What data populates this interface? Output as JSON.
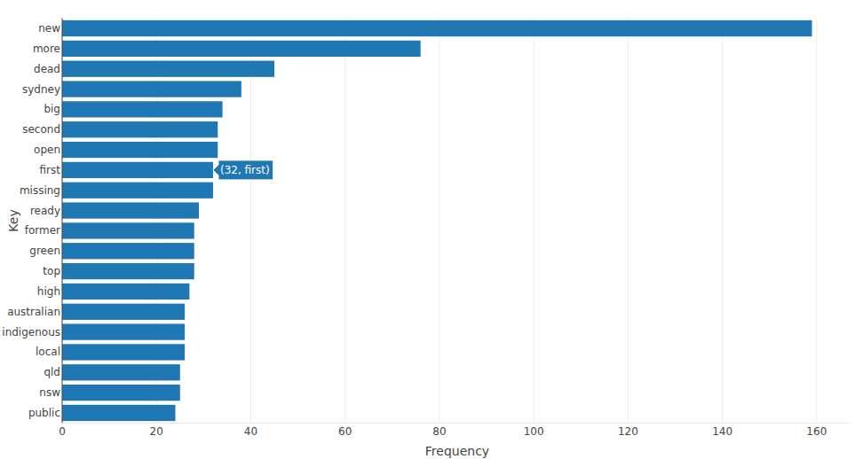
{
  "chart_data": {
    "type": "bar",
    "orientation": "horizontal",
    "xlabel": "Frequency",
    "ylabel": "Key",
    "categories": [
      "new",
      "more",
      "dead",
      "sydney",
      "big",
      "second",
      "open",
      "first",
      "missing",
      "ready",
      "former",
      "green",
      "top",
      "high",
      "australian",
      "indigenous",
      "local",
      "qld",
      "nsw",
      "public"
    ],
    "values": [
      159,
      76,
      45,
      38,
      34,
      33,
      33,
      32,
      32,
      29,
      28,
      28,
      28,
      27,
      26,
      26,
      26,
      25,
      25,
      24
    ],
    "color": "#1f77b4",
    "xlim": [
      0,
      167
    ],
    "xticks": [
      0,
      20,
      40,
      60,
      80,
      100,
      120,
      140,
      160
    ],
    "grid": true,
    "annotations": [
      {
        "text": "(32, first)",
        "x": 32,
        "y": "first"
      }
    ]
  }
}
